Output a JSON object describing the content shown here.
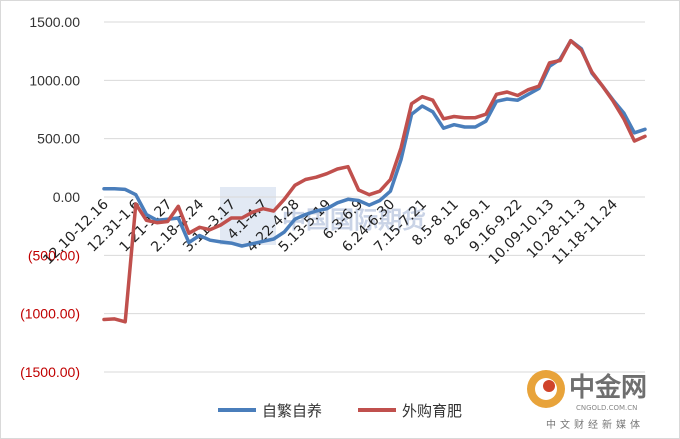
{
  "chart_data": {
    "type": "line",
    "title": "",
    "xlabel": "",
    "ylabel": "",
    "ylim": [
      -1500,
      1500
    ],
    "y_ticks": [
      1500,
      1000,
      500,
      0,
      -500,
      -1000,
      -1500
    ],
    "y_tick_labels": [
      "1500.00",
      "1000.00",
      "500.00",
      "0.00",
      "(500.00)",
      "(1000.00)",
      "(1500.00)"
    ],
    "negative_label_color": "#c00000",
    "positive_label_color": "#333333",
    "grid": true,
    "legend": "bottom",
    "category_labels": [
      {
        "index": 0,
        "label": "12.10-12.16"
      },
      {
        "index": 3,
        "label": "12.31-1.6"
      },
      {
        "index": 6,
        "label": "1.21-1.27"
      },
      {
        "index": 9,
        "label": "2.18-2.24"
      },
      {
        "index": 12,
        "label": "3.11-3.17"
      },
      {
        "index": 15,
        "label": "4.1-4.7"
      },
      {
        "index": 18,
        "label": "4.22-4.28"
      },
      {
        "index": 21,
        "label": "5.13-5.19"
      },
      {
        "index": 24,
        "label": "6.3-6.9"
      },
      {
        "index": 27,
        "label": "6.24-6.30"
      },
      {
        "index": 30,
        "label": "7.15-7.21"
      },
      {
        "index": 33,
        "label": "8.5-8.11"
      },
      {
        "index": 36,
        "label": "8.26-9.1"
      },
      {
        "index": 39,
        "label": "9.16-9.22"
      },
      {
        "index": 42,
        "label": "10.09-10.13"
      },
      {
        "index": 45,
        "label": "10.28-11.3"
      },
      {
        "index": 48,
        "label": "11.18-11.24"
      }
    ],
    "series": [
      {
        "name": "自繁自养",
        "color": "#4a7ebb",
        "values": [
          70,
          70,
          65,
          20,
          -150,
          -200,
          -190,
          -180,
          -390,
          -330,
          -370,
          -385,
          -395,
          -420,
          -400,
          -380,
          -360,
          -300,
          -190,
          -150,
          -120,
          -100,
          -50,
          -20,
          -30,
          -70,
          -30,
          50,
          320,
          710,
          780,
          730,
          590,
          620,
          600,
          600,
          650,
          820,
          840,
          830,
          880,
          930,
          1120,
          1180,
          1340,
          1270,
          1060,
          950,
          830,
          720,
          550,
          580
        ]
      },
      {
        "name": "外购育肥",
        "color": "#c0504d",
        "values": [
          -1050,
          -1045,
          -1070,
          -60,
          -200,
          -220,
          -210,
          -80,
          -310,
          -260,
          -280,
          -240,
          -180,
          -180,
          -130,
          -100,
          -120,
          -20,
          100,
          150,
          170,
          200,
          240,
          260,
          60,
          20,
          50,
          150,
          420,
          800,
          860,
          830,
          670,
          690,
          680,
          680,
          710,
          880,
          900,
          870,
          920,
          950,
          1150,
          1170,
          1340,
          1260,
          1070,
          950,
          820,
          670,
          480,
          520
        ]
      }
    ]
  },
  "watermark": "中国国际期货",
  "logo": {
    "name": "中金网",
    "domain": "CNGOLD.COM.CN",
    "tagline": "中文财经新媒体"
  }
}
